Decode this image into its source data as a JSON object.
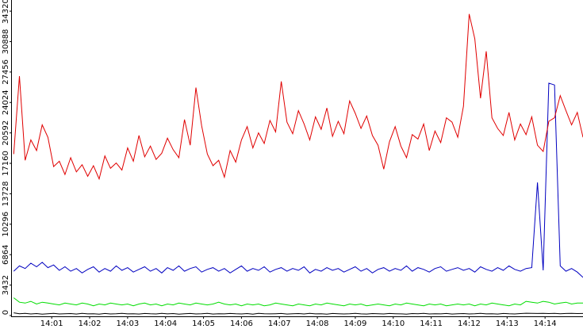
{
  "chart_data": {
    "type": "line",
    "x": [
      840,
      840.15,
      840.3,
      840.45,
      840.6,
      840.75,
      840.9,
      841.05,
      841.2,
      841.35,
      841.5,
      841.65,
      841.8,
      841.95,
      842.1,
      842.25,
      842.4,
      842.55,
      842.7,
      842.85,
      843,
      843.15,
      843.3,
      843.45,
      843.6,
      843.75,
      843.9,
      844.05,
      844.2,
      844.35,
      844.5,
      844.65,
      844.8,
      844.95,
      845.1,
      845.25,
      845.4,
      845.55,
      845.7,
      845.85,
      846,
      846.15,
      846.3,
      846.45,
      846.6,
      846.75,
      846.9,
      847.05,
      847.2,
      847.35,
      847.5,
      847.65,
      847.8,
      847.95,
      848.1,
      848.25,
      848.4,
      848.55,
      848.7,
      848.85,
      849,
      849.15,
      849.3,
      849.45,
      849.6,
      849.75,
      849.9,
      850.05,
      850.2,
      850.35,
      850.5,
      850.65,
      850.8,
      850.95,
      851.1,
      851.25,
      851.4,
      851.55,
      851.7,
      851.85,
      852,
      852.15,
      852.3,
      852.45,
      852.6,
      852.75,
      852.9,
      853.05,
      853.2,
      853.35,
      853.5,
      853.65,
      853.8,
      853.95,
      854.1,
      854.25,
      854.4,
      854.55,
      854.7,
      854.85,
      855
    ],
    "series": [
      {
        "color": "#e00000",
        "values": [
          18200,
          27000,
          17500,
          19800,
          18600,
          21500,
          20100,
          16800,
          17400,
          15900,
          17800,
          16200,
          17000,
          15700,
          16900,
          15400,
          18000,
          16600,
          17200,
          16400,
          18900,
          17400,
          20300,
          17900,
          19100,
          17600,
          18300,
          20000,
          18700,
          17800,
          22100,
          19200,
          25700,
          21400,
          18200,
          16900,
          17500,
          15600,
          18600,
          17300,
          19800,
          21300,
          18900,
          20600,
          19400,
          22000,
          20700,
          26400,
          21800,
          20500,
          23100,
          21600,
          19800,
          22400,
          21000,
          23400,
          20200,
          21900,
          20500,
          24200,
          22800,
          21100,
          22500,
          20300,
          19200,
          16500,
          19600,
          21300,
          19100,
          17800,
          20400,
          19900,
          21600,
          18600,
          20800,
          19500,
          22300,
          21800,
          20100,
          23600,
          34000,
          31200,
          24500,
          29800,
          22300,
          21100,
          20300,
          22900,
          19800,
          21600,
          20400,
          22400,
          19200,
          18500,
          21900,
          22300,
          24800,
          23100,
          21500,
          22900,
          20100
        ]
      },
      {
        "color": "#0000c0",
        "values": [
          5000,
          5600,
          5300,
          5900,
          5500,
          6000,
          5400,
          5700,
          5100,
          5500,
          5000,
          5300,
          4800,
          5200,
          5500,
          4900,
          5300,
          5000,
          5600,
          5100,
          5400,
          4900,
          5200,
          5500,
          5000,
          5300,
          4800,
          5400,
          5100,
          5600,
          5000,
          5300,
          5500,
          4900,
          5200,
          5400,
          5000,
          5300,
          4800,
          5200,
          5600,
          5000,
          5300,
          5100,
          5500,
          4900,
          5200,
          5400,
          5000,
          5300,
          5100,
          5500,
          4800,
          5200,
          5000,
          5400,
          5100,
          5300,
          4900,
          5200,
          5500,
          5000,
          5300,
          4800,
          5200,
          5400,
          5000,
          5300,
          5100,
          5600,
          5000,
          5400,
          5200,
          4900,
          5300,
          5500,
          5000,
          5200,
          5400,
          5100,
          5300,
          4900,
          5500,
          5200,
          5000,
          5400,
          5100,
          5600,
          5200,
          5000,
          5300,
          5400,
          15000,
          5100,
          26200,
          26000,
          5600,
          5000,
          5300,
          4900,
          4300
        ]
      },
      {
        "color": "#00dd00",
        "values": [
          2000,
          1500,
          1400,
          1600,
          1300,
          1500,
          1400,
          1300,
          1200,
          1400,
          1300,
          1200,
          1400,
          1300,
          1100,
          1300,
          1200,
          1400,
          1300,
          1200,
          1300,
          1100,
          1300,
          1400,
          1200,
          1300,
          1100,
          1300,
          1200,
          1400,
          1300,
          1200,
          1400,
          1300,
          1200,
          1300,
          1500,
          1300,
          1200,
          1300,
          1100,
          1300,
          1200,
          1300,
          1100,
          1200,
          1400,
          1300,
          1200,
          1100,
          1300,
          1200,
          1100,
          1300,
          1200,
          1400,
          1300,
          1200,
          1100,
          1300,
          1200,
          1300,
          1100,
          1200,
          1300,
          1200,
          1100,
          1300,
          1200,
          1400,
          1300,
          1200,
          1100,
          1300,
          1200,
          1300,
          1100,
          1200,
          1300,
          1200,
          1300,
          1100,
          1300,
          1200,
          1400,
          1300,
          1200,
          1100,
          1300,
          1200,
          1600,
          1500,
          1400,
          1600,
          1500,
          1300,
          1400,
          1500,
          1300,
          1400,
          1400
        ]
      },
      {
        "color": "#000000",
        "values": [
          300,
          200,
          250,
          180,
          220,
          150,
          200,
          250,
          180,
          200,
          220,
          170,
          240,
          190,
          210,
          160,
          230,
          180,
          200,
          250,
          190,
          210,
          170,
          230,
          200,
          180,
          240,
          190,
          220,
          160,
          210,
          230,
          180,
          200,
          250,
          170,
          210,
          190,
          230,
          200,
          180,
          220,
          160,
          240,
          200,
          190,
          210,
          230,
          170,
          200,
          220,
          180,
          240,
          190,
          200,
          160,
          230,
          210,
          180,
          200,
          240,
          190,
          170,
          220,
          200,
          180,
          230,
          210,
          190,
          160,
          220,
          200,
          240,
          180,
          210,
          190,
          230,
          170,
          200,
          220,
          180,
          210,
          250,
          190,
          200,
          170,
          230,
          200,
          180,
          220,
          260,
          240,
          230,
          250,
          220,
          240,
          210,
          230,
          250,
          220,
          230
        ]
      }
    ],
    "xlim": [
      839.93,
      855
    ],
    "xticks": [
      {
        "value": 841,
        "label": "14:01"
      },
      {
        "value": 842,
        "label": "14:02"
      },
      {
        "value": 843,
        "label": "14:03"
      },
      {
        "value": 844,
        "label": "14:04"
      },
      {
        "value": 845,
        "label": "14:05"
      },
      {
        "value": 846,
        "label": "14:06"
      },
      {
        "value": 847,
        "label": "14:07"
      },
      {
        "value": 848,
        "label": "14:08"
      },
      {
        "value": 849,
        "label": "14:09"
      },
      {
        "value": 850,
        "label": "14:10"
      },
      {
        "value": 851,
        "label": "14:11"
      },
      {
        "value": 852,
        "label": "14:12"
      },
      {
        "value": 853,
        "label": "14:13"
      },
      {
        "value": 854,
        "label": "14:14"
      }
    ],
    "ylim": [
      0,
      35580
    ],
    "yticks": [
      0,
      3432,
      6864,
      10296,
      13728,
      17160,
      20592,
      24024,
      27456,
      30888,
      34320
    ],
    "grid": false
  }
}
